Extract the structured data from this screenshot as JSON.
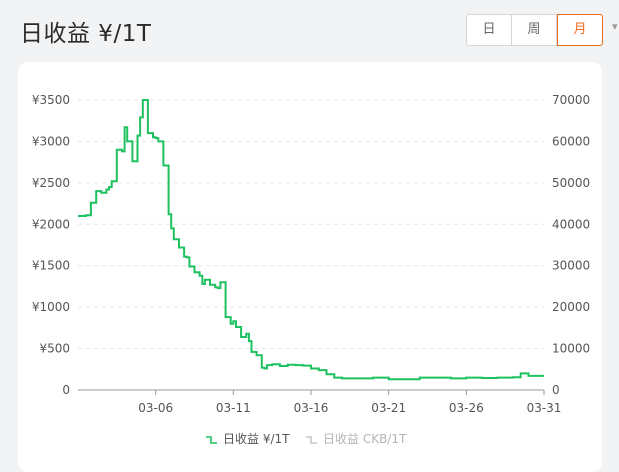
{
  "header": {
    "title": "日收益 ¥/1T",
    "range_tabs": [
      {
        "label": "日",
        "active": false
      },
      {
        "label": "周",
        "active": false
      },
      {
        "label": "月",
        "active": true
      }
    ],
    "accent_color": "#ef6a1f"
  },
  "chart_data": {
    "type": "line",
    "step": true,
    "title": "",
    "xlabel": "",
    "ylabel": "",
    "x_ticks": [
      "03-06",
      "03-11",
      "03-16",
      "03-21",
      "03-26",
      "03-31"
    ],
    "y_left": {
      "min": 0,
      "max": 3500,
      "ticks": [
        "0",
        "¥500",
        "¥1000",
        "¥1500",
        "¥2000",
        "¥2500",
        "¥3000",
        "¥3500"
      ]
    },
    "y_right": {
      "min": 0,
      "max": 70000,
      "ticks": [
        "0",
        "10000",
        "20000",
        "30000",
        "40000",
        "50000",
        "60000",
        "70000"
      ]
    },
    "grid": "horizontal-dashed",
    "legend_position": "bottom",
    "series": [
      {
        "name": "日收益 ¥/1T",
        "color": "#1ec15f",
        "active": true,
        "x": [
          1.0,
          1.5,
          1.83,
          2.17,
          2.5,
          2.83,
          3.0,
          3.17,
          3.5,
          3.83,
          4.0,
          4.17,
          4.5,
          4.83,
          5.0,
          5.17,
          5.5,
          5.83,
          6.0,
          6.17,
          6.5,
          6.83,
          7.0,
          7.17,
          7.5,
          7.83,
          8.0,
          8.17,
          8.5,
          8.83,
          9.0,
          9.17,
          9.5,
          9.83,
          10.0,
          10.17,
          10.5,
          10.83,
          11.0,
          11.17,
          11.5,
          11.83,
          12.0,
          12.17,
          12.5,
          12.83,
          13.0,
          13.17,
          13.5,
          14.0,
          14.5,
          15.0,
          15.5,
          16.0,
          16.5,
          17.0,
          17.5,
          18.0,
          19.0,
          20.0,
          21.0,
          22.0,
          23.0,
          24.0,
          25.0,
          26.0,
          27.0,
          28.0,
          29.0,
          29.5,
          30.0,
          31.0
        ],
        "values": [
          2100,
          2110,
          2260,
          2400,
          2380,
          2420,
          2450,
          2520,
          2900,
          2880,
          3170,
          3000,
          2760,
          3070,
          3290,
          3500,
          3100,
          3050,
          3040,
          3000,
          2710,
          2120,
          1950,
          1820,
          1720,
          1610,
          1600,
          1490,
          1420,
          1380,
          1280,
          1330,
          1270,
          1240,
          1230,
          1300,
          880,
          800,
          830,
          760,
          640,
          680,
          590,
          460,
          420,
          270,
          260,
          300,
          310,
          290,
          305,
          300,
          295,
          260,
          240,
          190,
          150,
          140,
          140,
          150,
          130,
          130,
          150,
          150,
          140,
          150,
          145,
          150,
          155,
          200,
          170,
          170
        ]
      },
      {
        "name": "日收益 CKB/1T",
        "color": "#c8c8c8",
        "active": false
      }
    ]
  }
}
